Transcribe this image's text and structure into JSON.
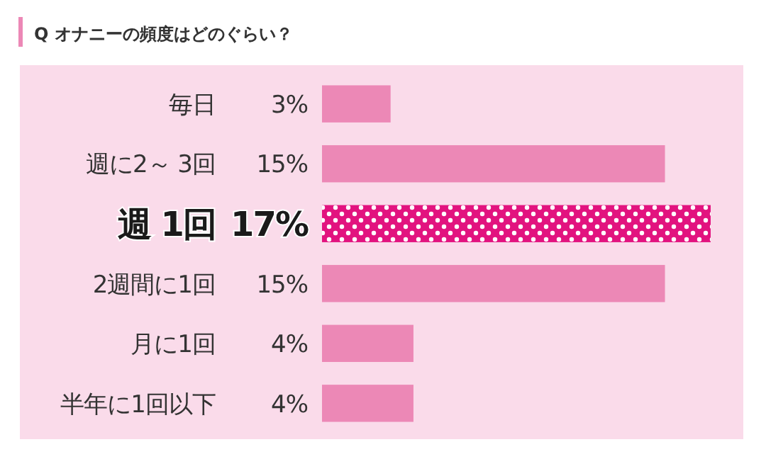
{
  "chart_data": {
    "type": "bar",
    "orientation": "horizontal",
    "title": "Q オナニーの頻度はどのぐらい？",
    "categories": [
      "毎日",
      "週に2～ 3回",
      "週 1回",
      "2週間に1回",
      "月に1回",
      "半年に1回以下"
    ],
    "values": [
      3,
      15,
      17,
      15,
      4,
      4
    ],
    "value_labels": [
      "3%",
      "15%",
      "17%",
      "15%",
      "4%",
      "4%"
    ],
    "colors": [
      "#ec88b6",
      "#ec88b6",
      "#e2137f",
      "#ec88b6",
      "#ec88b6",
      "#ec88b6"
    ]
  }
}
